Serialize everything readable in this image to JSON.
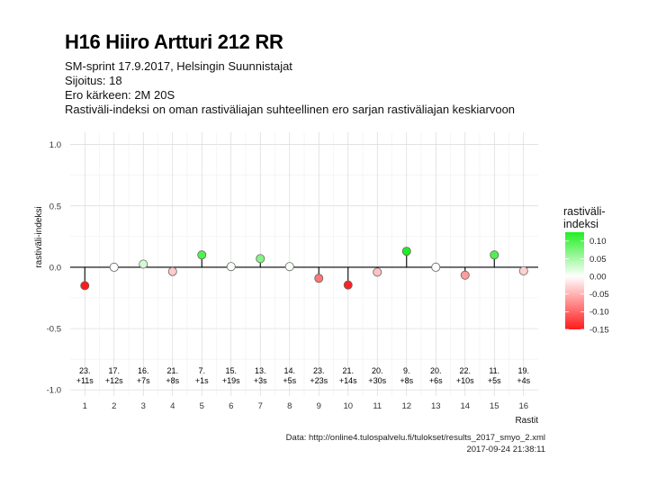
{
  "header": {
    "title": "H16 Hiiro Artturi 212 RR",
    "subtitle_lines": [
      "SM-sprint 17.9.2017, Helsingin Suunnistajat",
      "Sijoitus: 18",
      "Ero kärkeen: 2M 20S",
      "Rastiväli-indeksi on oman rastiväliajan suhteellinen ero sarjan rastiväliajan keskiarvoon"
    ]
  },
  "caption": {
    "source": "Data: http://online4.tulospalvelu.fi/tulokset/results_2017_smyo_2.xml",
    "timestamp": "2017-09-24 21:38:11"
  },
  "chart_data": {
    "type": "scatter",
    "style": "lollipop",
    "xlabel": "Rastit",
    "ylabel": "rastiväli-indeksi",
    "xlim": [
      0.5,
      16.5
    ],
    "ylim": [
      -1.05,
      1.1
    ],
    "x_ticks": [
      1,
      2,
      3,
      4,
      5,
      6,
      7,
      8,
      9,
      10,
      11,
      12,
      13,
      14,
      15,
      16
    ],
    "y_ticks": [
      -1.0,
      -0.5,
      0.0,
      0.5,
      1.0
    ],
    "y_tick_labels": [
      "-1.0",
      "-0.5",
      "0.0",
      "0.5",
      "1.0"
    ],
    "grid": true,
    "x": [
      1,
      2,
      3,
      4,
      5,
      6,
      7,
      8,
      9,
      10,
      11,
      12,
      13,
      14,
      15,
      16
    ],
    "values": [
      -0.15,
      0.0,
      0.025,
      -0.035,
      0.1,
      0.005,
      0.07,
      0.005,
      -0.09,
      -0.145,
      -0.04,
      0.13,
      0.0,
      -0.065,
      0.1,
      -0.03
    ],
    "rank_labels": [
      "23.",
      "17.",
      "16.",
      "21.",
      "7.",
      "15.",
      "13.",
      "14.",
      "23.",
      "21.",
      "20.",
      "9.",
      "20.",
      "22.",
      "11.",
      "19."
    ],
    "diff_labels": [
      "+11s",
      "+12s",
      "+7s",
      "+8s",
      "+1s",
      "+19s",
      "+3s",
      "+5s",
      "+23s",
      "+14s",
      "+30s",
      "+8s",
      "+6s",
      "+10s",
      "+5s",
      "+4s"
    ],
    "legend": {
      "title_lines": [
        "rastiväli-",
        "indeksi"
      ],
      "placement": "right",
      "range": [
        -0.15,
        0.125
      ],
      "ticks": [
        0.1,
        0.05,
        0.0,
        -0.05,
        -0.1,
        -0.15
      ],
      "tick_labels": [
        "0.10",
        "0.05",
        "0.00",
        "-0.05",
        "-0.10",
        "-0.15"
      ],
      "color_low": "#ff1a1a",
      "color_mid": "#ffffff",
      "color_high": "#22ee22"
    }
  }
}
